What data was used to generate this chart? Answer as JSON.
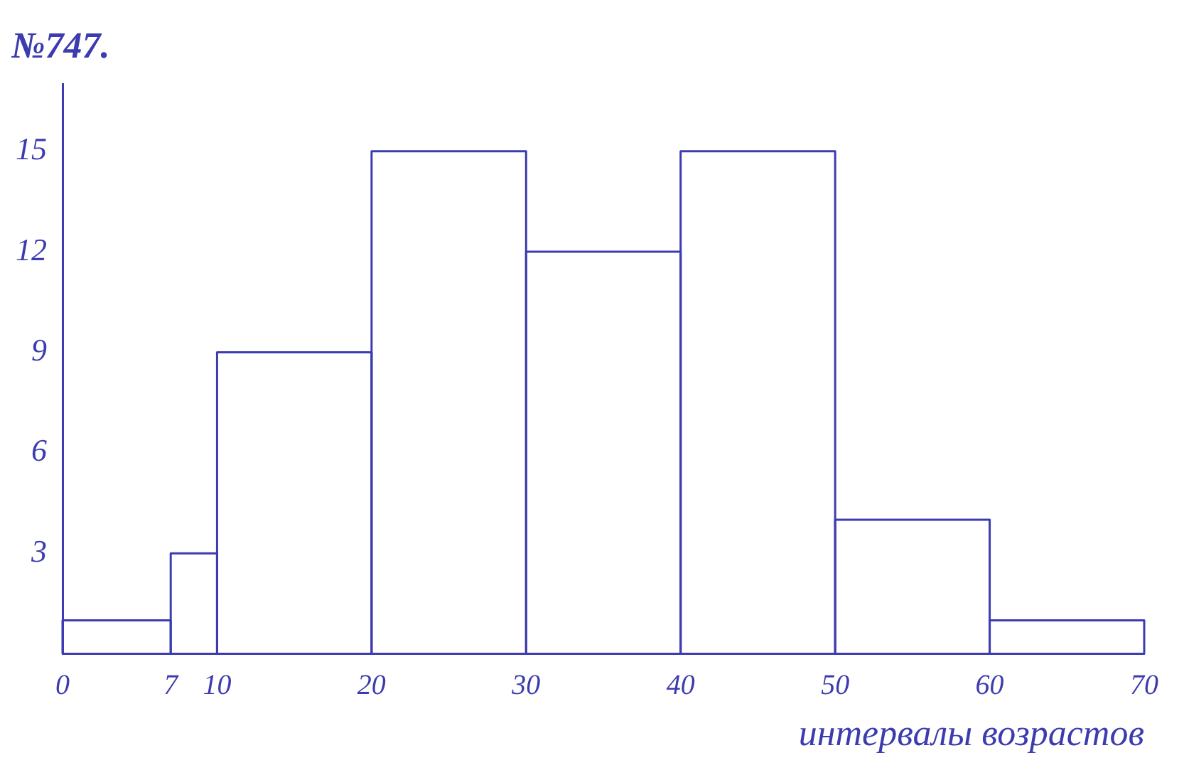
{
  "chart_data": {
    "type": "histogram",
    "title": "№747.",
    "xlabel": "интервалы возрастов",
    "bins": [
      0,
      7,
      10,
      20,
      30,
      40,
      50,
      60,
      70
    ],
    "values": [
      1,
      3,
      9,
      15,
      12,
      15,
      4,
      1
    ],
    "color": "#3c3cb0",
    "xlim": [
      0,
      70
    ],
    "xticks": [
      0,
      7,
      10,
      20,
      30,
      40,
      50,
      60,
      70
    ],
    "ylim": [
      0,
      17
    ],
    "yticks": [
      3,
      6,
      9,
      12,
      15
    ],
    "grid": false,
    "legend": false
  }
}
